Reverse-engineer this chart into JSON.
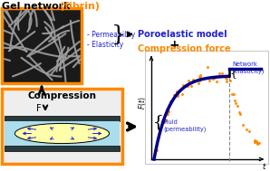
{
  "title_text": "Gel network ",
  "title_orange": "(fibrin)",
  "poroelastic_text": "Poroelastic model",
  "plus_text": "+",
  "compression_force_text": "Compression force",
  "permeability_text": "- Permeability",
  "elasticity_text": "- Elasticity",
  "compression_label": "Compression",
  "F_label": "F",
  "network_label": "Network\n(elasticity)",
  "fluid_label": "Fluid\n(permeability)",
  "orange_color": "#FF8800",
  "blue_color": "#2222CC",
  "dark_blue": "#00008B",
  "bg_color": "#FFFFFF",
  "gel_box_color": "#FF8800",
  "compress_box_color": "#FF8800",
  "network_curve_color": "#00008B",
  "fluid_dots_color": "#FF8800",
  "cyan_color": "#AADDEE",
  "yellow_color": "#FFFFAA",
  "dark_plate": "#2A3A3A",
  "fibrin_color": "#A0A0A0",
  "fibrin_bg": "#1A1A1A"
}
